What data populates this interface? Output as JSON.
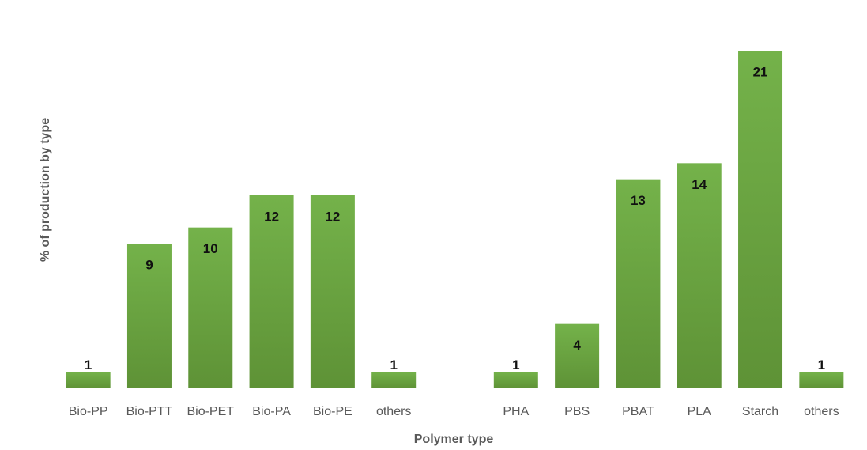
{
  "chart_data": {
    "type": "bar",
    "categories": [
      "Bio-PP",
      "Bio-PTT",
      "Bio-PET",
      "Bio-PA",
      "Bio-PE",
      "others",
      null,
      "PHA",
      "PBS",
      "PBAT",
      "PLA",
      "Starch",
      "others"
    ],
    "values": [
      1,
      9,
      10,
      12,
      12,
      1,
      null,
      1,
      4,
      13,
      14,
      21,
      1
    ],
    "color": "#70ad47",
    "xlabel": "Polymer type",
    "ylabel": "% of production by type"
  }
}
